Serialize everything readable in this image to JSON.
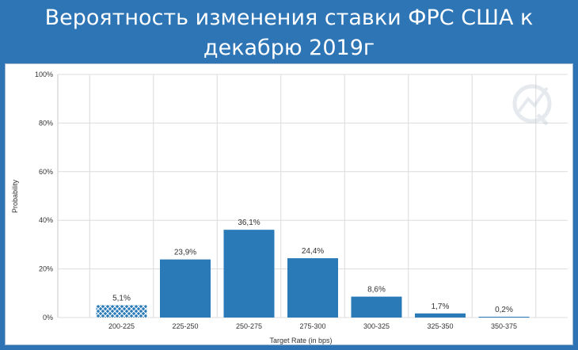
{
  "header": {
    "title_line1": "Вероятность изменения ставки ФРС США к",
    "title_line2": "декабрю 2019г"
  },
  "chart_data": {
    "type": "bar",
    "title": "Вероятность изменения ставки ФРС США к декабрю 2019г",
    "xlabel": "Target Rate (in bps)",
    "ylabel": "Probability",
    "categories": [
      "200-225",
      "225-250",
      "250-275",
      "275-300",
      "300-325",
      "325-350",
      "350-375"
    ],
    "values": [
      5.1,
      23.9,
      36.1,
      24.4,
      8.6,
      1.7,
      0.2
    ],
    "data_labels": [
      "5,1%",
      "23,9%",
      "36,1%",
      "24,4%",
      "8,6%",
      "1,7%",
      "0,2%"
    ],
    "current_target_category": "200-225",
    "ylim": [
      0,
      100
    ],
    "yticks": [
      0,
      20,
      40,
      60,
      80,
      100
    ],
    "ytick_labels": [
      "0%",
      "20%",
      "40%",
      "60%",
      "80%",
      "100%"
    ],
    "grid": true,
    "legend": "none",
    "colors": {
      "bar": "#2a7ab8",
      "bar_hatched": "#2a7ab8",
      "grid": "#dcdcdc"
    }
  }
}
